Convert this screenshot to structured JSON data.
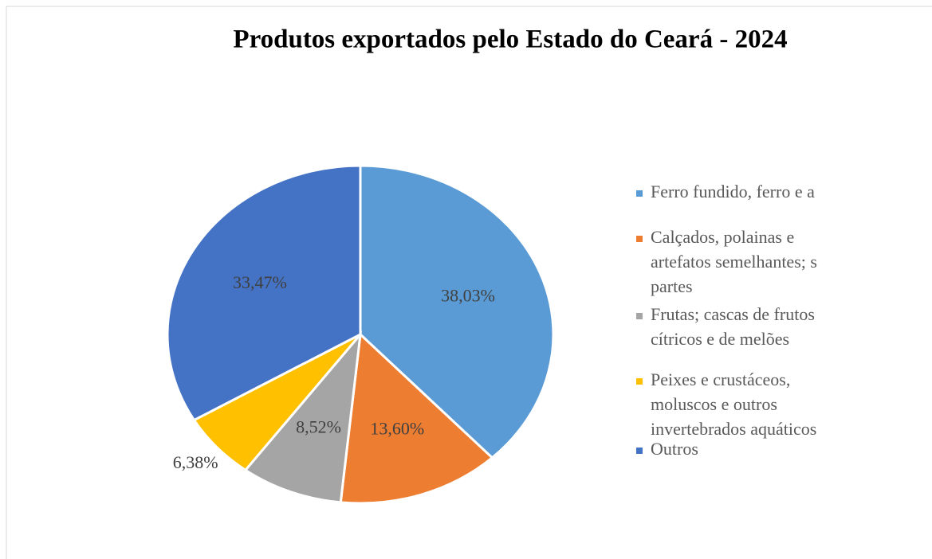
{
  "chart_data": {
    "type": "pie",
    "title": "Produtos exportados pelo Estado do Ceará - 2024",
    "series": [
      {
        "name": "Ferro fundido, ferro e a",
        "color": "#5b9bd5",
        "values": [
          38.03
        ],
        "value_labels": [
          "38,03%"
        ]
      },
      {
        "name": "Calçados, polainas e\nartefatos semelhantes; s\npartes",
        "color": "#ed7d31",
        "values": [
          13.6
        ],
        "value_labels": [
          "13,60%"
        ]
      },
      {
        "name": "Frutas; cascas de frutos\ncítricos e de melões",
        "color": "#a5a5a5",
        "values": [
          8.52
        ],
        "value_labels": [
          "8,52%"
        ]
      },
      {
        "name": "Peixes e crustáceos,\nmoluscos e outros\ninvertebrados aquáticos",
        "color": "#ffc000",
        "values": [
          6.38
        ],
        "value_labels": [
          "6,38%"
        ]
      },
      {
        "name": "Outros",
        "color": "#4472c4",
        "values": [
          33.47
        ],
        "value_labels": [
          "33,47%"
        ]
      }
    ],
    "legend": "right"
  }
}
